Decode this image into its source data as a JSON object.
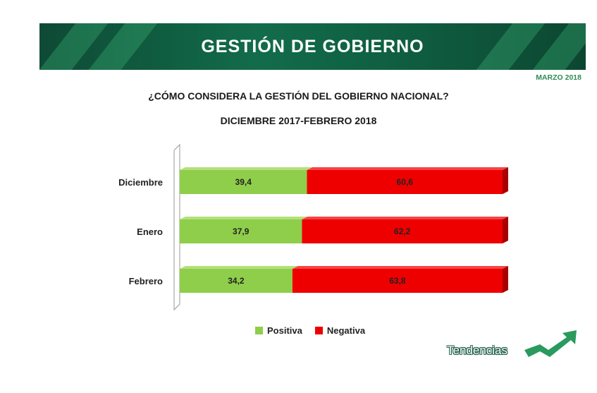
{
  "header": {
    "title": "GESTIÓN DE GOBIERNO",
    "date": "MARZO 2018"
  },
  "brand": {
    "name": "Tendencias"
  },
  "colors": {
    "banner": "#0f5c40",
    "positiva": "#8fce4a",
    "negativa": "#ee0000",
    "logo": "#2a9a5e"
  },
  "chart_data": {
    "type": "bar",
    "stacked": true,
    "orientation": "horizontal",
    "title": "¿CÓMO CONSIDERA LA GESTIÓN DEL GOBIERNO NACIONAL?",
    "subtitle": "DICIEMBRE 2017-FEBRERO 2018",
    "categories": [
      "Diciembre",
      "Enero",
      "Febrero"
    ],
    "series": [
      {
        "name": "Positiva",
        "values_label": [
          "39,4",
          "37,9",
          "34,2"
        ],
        "values": [
          39.4,
          37.9,
          34.2
        ]
      },
      {
        "name": "Negativa",
        "values_label": [
          "60,6",
          "62,2",
          "63,8"
        ],
        "values": [
          60.6,
          62.2,
          63.8
        ]
      }
    ],
    "legend_position": "bottom",
    "grid": false
  }
}
